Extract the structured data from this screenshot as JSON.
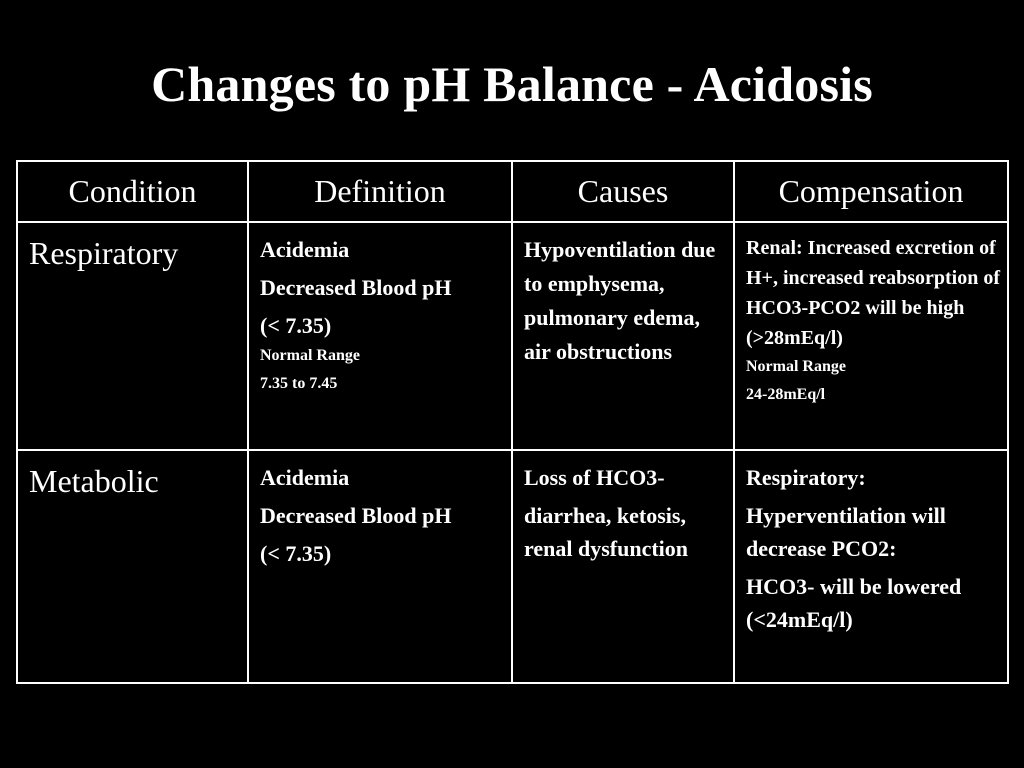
{
  "title": "Changes to pH Balance - Acidosis",
  "table": {
    "headers": [
      "Condition",
      "Definition",
      "Causes",
      "Compensation"
    ],
    "rows": [
      {
        "condition": "Respiratory",
        "definition": {
          "line1": "Acidemia",
          "line2": "Decreased Blood pH",
          "line3": "(< 7.35)",
          "line4": "Normal Range",
          "line5": "7.35 to 7.45"
        },
        "causes": "Hypoventilation due to emphysema, pulmonary edema, air obstructions",
        "compensation": {
          "line1": "Renal:  Increased excretion of H+, increased reabsorption of HCO3-PCO2 will be high (>28mEq/l)",
          "line2": "Normal Range",
          "line3": "24-28mEq/l"
        }
      },
      {
        "condition": "Metabolic",
        "definition": {
          "line1": "Acidemia",
          "line2": "Decreased Blood pH",
          "line3": "(< 7.35)"
        },
        "causes": {
          "line1": "Loss of HCO3-",
          "line2": "diarrhea, ketosis, renal dysfunction"
        },
        "compensation": {
          "line1": "Respiratory:",
          "line2": "Hyperventilation will decrease PCO2:",
          "line3": "HCO3- will be lowered (<24mEq/l)"
        }
      }
    ]
  }
}
